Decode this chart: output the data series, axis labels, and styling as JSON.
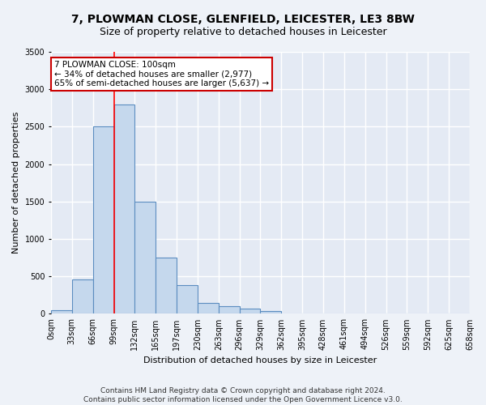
{
  "title1": "7, PLOWMAN CLOSE, GLENFIELD, LEICESTER, LE3 8BW",
  "title2": "Size of property relative to detached houses in Leicester",
  "xlabel": "Distribution of detached houses by size in Leicester",
  "ylabel": "Number of detached properties",
  "bin_labels": [
    "0sqm",
    "33sqm",
    "66sqm",
    "99sqm",
    "132sqm",
    "165sqm",
    "197sqm",
    "230sqm",
    "263sqm",
    "296sqm",
    "329sqm",
    "362sqm",
    "395sqm",
    "428sqm",
    "461sqm",
    "494sqm",
    "526sqm",
    "559sqm",
    "592sqm",
    "625sqm",
    "658sqm"
  ],
  "bar_heights": [
    50,
    460,
    2500,
    2800,
    1500,
    750,
    380,
    150,
    105,
    70,
    40,
    10,
    5,
    0,
    0,
    0,
    0,
    0,
    0,
    0
  ],
  "bar_color": "#c5d8ed",
  "bar_edge_color": "#5b8dc0",
  "bar_edge_width": 0.8,
  "red_line_x": 99,
  "annotation_title": "7 PLOWMAN CLOSE: 100sqm",
  "annotation_line2": "← 34% of detached houses are smaller (2,977)",
  "annotation_line3": "65% of semi-detached houses are larger (5,637) →",
  "annotation_box_color": "#ffffff",
  "annotation_box_edge": "#cc0000",
  "ylim": [
    0,
    3500
  ],
  "yticks": [
    0,
    500,
    1000,
    1500,
    2000,
    2500,
    3000,
    3500
  ],
  "footer_line1": "Contains HM Land Registry data © Crown copyright and database right 2024.",
  "footer_line2": "Contains public sector information licensed under the Open Government Licence v3.0.",
  "bg_color": "#eef2f8",
  "plot_bg_color": "#e4eaf4",
  "grid_color": "#ffffff",
  "title_fontsize": 10,
  "subtitle_fontsize": 9,
  "axis_label_fontsize": 8,
  "tick_fontsize": 7,
  "annotation_fontsize": 7.5,
  "footer_fontsize": 6.5
}
